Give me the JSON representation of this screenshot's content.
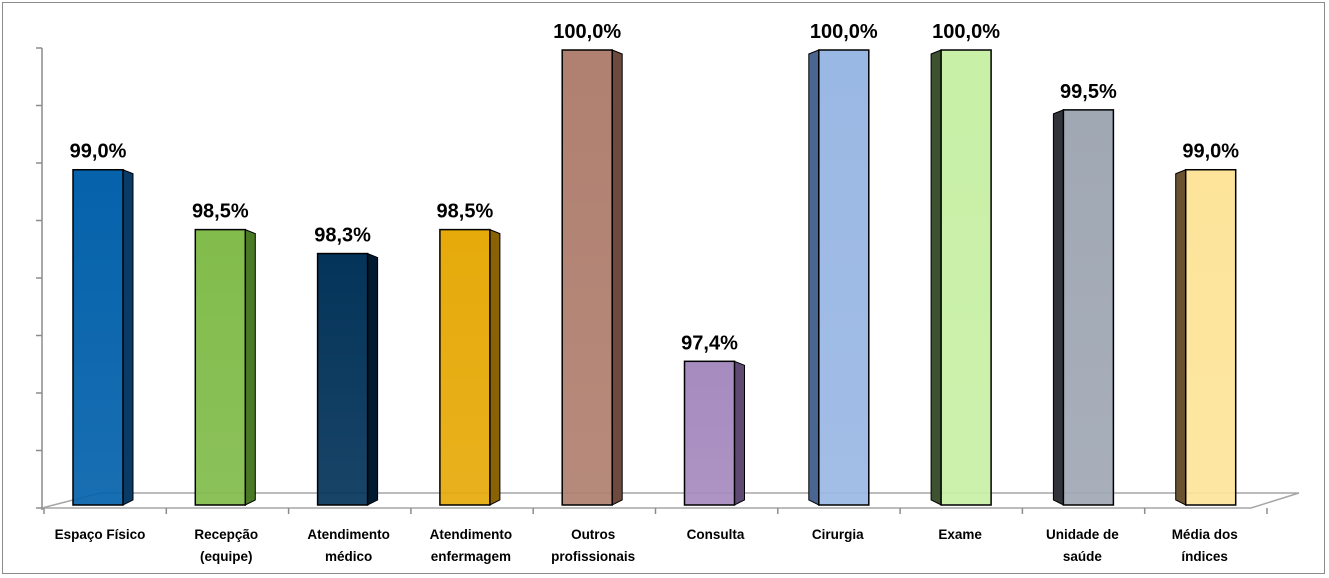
{
  "chart_data": {
    "type": "bar",
    "title": "",
    "xlabel": "",
    "ylabel": "",
    "ylim": [
      96.2,
      100
    ],
    "grid": false,
    "legend": "none",
    "categories": [
      [
        "Espaço Físico"
      ],
      [
        "Recepção",
        "(equipe)"
      ],
      [
        "Atendimento",
        "médico"
      ],
      [
        "Atendimento",
        "enfermagem"
      ],
      [
        "Outros",
        "profissionais"
      ],
      [
        "Consulta"
      ],
      [
        "Cirurgia"
      ],
      [
        "Exame"
      ],
      [
        "Unidade de",
        "saúde"
      ],
      [
        "Média dos",
        "índices"
      ]
    ],
    "values": [
      99.0,
      98.5,
      98.3,
      98.5,
      100.0,
      97.4,
      100.0,
      100.0,
      99.5,
      99.0
    ],
    "value_labels": [
      "99,0%",
      "98,5%",
      "98,3%",
      "98,5%",
      "100,0%",
      "97,4%",
      "100,0%",
      "100,0%",
      "99,5%",
      "99,0%"
    ],
    "colors": [
      {
        "front": "#0562ab",
        "side": "#0a3a66"
      },
      {
        "front": "#82bc4c",
        "side": "#4a7a26"
      },
      {
        "front": "#04345a",
        "side": "#021a30"
      },
      {
        "front": "#e6aa0a",
        "side": "#8a6206"
      },
      {
        "front": "#b08070",
        "side": "#6e4a3e"
      },
      {
        "front": "#a68bbf",
        "side": "#5e4a72"
      },
      {
        "front": "#9ab8e4",
        "side": "#4a6690"
      },
      {
        "front": "#c8f0a6",
        "side": "#3c5230"
      },
      {
        "front": "#a0a8b4",
        "side": "#30343a"
      },
      {
        "front": "#fde49a",
        "side": "#6a5230"
      }
    ]
  }
}
